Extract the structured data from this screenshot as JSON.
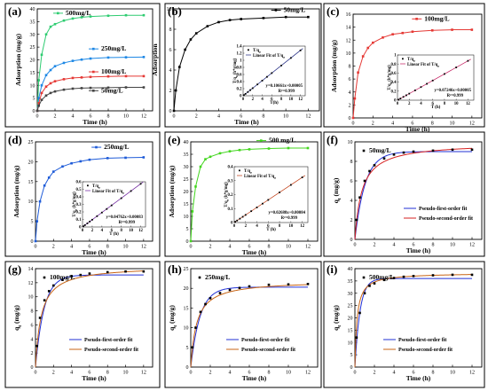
{
  "chart_data": [
    {
      "id": "a",
      "panel_label": "(a)",
      "type": "line",
      "xlabel": "Time (h)",
      "ylabel": "Adsorption (mg/g)",
      "xlim": [
        0,
        13
      ],
      "ylim": [
        0,
        40
      ],
      "xticks": [
        0,
        2,
        4,
        6,
        8,
        10,
        12
      ],
      "yticks": [
        0,
        5,
        10,
        15,
        20,
        25,
        30,
        35,
        40
      ],
      "series": [
        {
          "name": "500mg/L",
          "color": "#2ecc71",
          "label_at": [
            3.2,
            37.6
          ],
          "x": [
            0,
            0.17,
            0.5,
            1,
            1.5,
            2,
            3,
            4,
            5,
            6,
            8,
            10,
            12
          ],
          "y": [
            0,
            12,
            22,
            30,
            33,
            34,
            35.4,
            36.2,
            36.7,
            37,
            37.3,
            37.5,
            37.5
          ]
        },
        {
          "name": "250mg/L",
          "color": "#1e88e5",
          "label_at": [
            7.2,
            23.6
          ],
          "x": [
            0,
            0.17,
            0.5,
            1,
            1.5,
            2,
            3,
            4,
            5,
            6,
            8,
            10,
            12
          ],
          "y": [
            0,
            5,
            10,
            14,
            16,
            17.5,
            18.8,
            19.6,
            20.1,
            20.5,
            20.9,
            21,
            21.1
          ]
        },
        {
          "name": "100mg/L",
          "color": "#e53935",
          "label_at": [
            7.2,
            14.6
          ],
          "x": [
            0,
            0.17,
            0.5,
            1,
            1.5,
            2,
            3,
            4,
            5,
            6,
            8,
            10,
            12
          ],
          "y": [
            0,
            3,
            7,
            9.5,
            10.8,
            11.6,
            12.4,
            12.9,
            13.1,
            13.3,
            13.5,
            13.6,
            13.6
          ]
        },
        {
          "name": "50mg/L",
          "color": "#444444",
          "label_at": [
            7.2,
            7.2
          ],
          "x": [
            0,
            0.17,
            0.5,
            1,
            1.5,
            2,
            3,
            4,
            5,
            6,
            8,
            10,
            12
          ],
          "y": [
            0,
            2,
            4.3,
            6,
            7,
            7.6,
            8.3,
            8.7,
            8.9,
            9,
            9.1,
            9.2,
            9.2
          ]
        }
      ]
    },
    {
      "id": "b",
      "panel_label": "(b)",
      "type": "line",
      "xlabel": "Time (h)",
      "ylabel": "Adsorption",
      "xlim": [
        0,
        13
      ],
      "ylim": [
        0,
        10
      ],
      "xticks": [
        0,
        2,
        4,
        6,
        8,
        10,
        12
      ],
      "yticks": [
        0,
        2,
        4,
        6,
        8,
        10
      ],
      "series": [
        {
          "name": "50mg/L",
          "color": "#000000",
          "label_at": [
            9.8,
            9.7
          ],
          "x": [
            0,
            0.17,
            0.5,
            1,
            1.5,
            2,
            3,
            4,
            5,
            6,
            8,
            10,
            12
          ],
          "y": [
            0,
            2,
            4.3,
            6,
            7,
            7.6,
            8.3,
            8.7,
            8.9,
            9,
            9.1,
            9.2,
            9.2
          ]
        }
      ],
      "inset": {
        "xlabel": "T(h)",
        "ylabel": "T/q_e (h*g/mg)",
        "xlim": [
          0,
          13
        ],
        "ylim": [
          0,
          1.4
        ],
        "xticks": [
          0,
          2,
          4,
          6,
          8,
          10,
          12
        ],
        "yticks": [
          0.0,
          0.2,
          0.4,
          0.6,
          0.8,
          1.0,
          1.2,
          1.4
        ],
        "legend": [
          "T/q_e",
          "Linear Fit of T/q_e"
        ],
        "equation": "y=0.10661x+0.00005",
        "r2": "R²=0.999",
        "slope": 0.10661,
        "intercept": 5e-05,
        "color": "#1a237e",
        "points_x": [
          0.17,
          0.5,
          1,
          1.5,
          2,
          3,
          4,
          5,
          6,
          8,
          10,
          12
        ]
      }
    },
    {
      "id": "c",
      "panel_label": "(c)",
      "type": "line",
      "xlabel": "Time (h)",
      "ylabel": "Adsorption (mg/g)",
      "xlim": [
        0,
        13
      ],
      "ylim": [
        0,
        16
      ],
      "xticks": [
        0,
        2,
        4,
        6,
        8,
        10,
        12
      ],
      "yticks": [
        0,
        2,
        4,
        6,
        8,
        10,
        12,
        14,
        16
      ],
      "series": [
        {
          "name": "100mg/L",
          "color": "#e53935",
          "label_at": [
            7.2,
            15.0
          ],
          "x": [
            0,
            0.17,
            0.5,
            1,
            1.5,
            2,
            3,
            4,
            5,
            6,
            8,
            10,
            12
          ],
          "y": [
            0,
            3,
            7,
            9.5,
            10.8,
            11.6,
            12.4,
            12.9,
            13.1,
            13.3,
            13.5,
            13.6,
            13.6
          ]
        }
      ],
      "inset": {
        "xlabel": "T (h)",
        "ylabel": "T/q_e (h*g/mg)",
        "xlim": [
          0,
          13
        ],
        "ylim": [
          0,
          1.0
        ],
        "xticks": [
          0,
          2,
          4,
          6,
          8,
          10,
          12
        ],
        "yticks": [
          0.0,
          0.2,
          0.4,
          0.6,
          0.8,
          1.0
        ],
        "legend": [
          "T/q_e",
          "Linear Fit of T/q_e"
        ],
        "equation": "y=0.07246x+0.00005",
        "r2": "R²=0.999",
        "slope": 0.07246,
        "intercept": 5e-05,
        "color": "#c2185b",
        "points_x": [
          0.17,
          0.5,
          1,
          1.5,
          2,
          3,
          4,
          5,
          6,
          8,
          10,
          12
        ]
      }
    },
    {
      "id": "d",
      "panel_label": "(d)",
      "type": "line",
      "xlabel": "Time (h)",
      "ylabel": "Adsorption (mg/g)",
      "xlim": [
        0,
        13
      ],
      "ylim": [
        0,
        25
      ],
      "xticks": [
        0,
        2,
        4,
        6,
        8,
        10,
        12
      ],
      "yticks": [
        0,
        5,
        10,
        15,
        20,
        25
      ],
      "series": [
        {
          "name": "250mg/L",
          "color": "#1e5bd8",
          "label_at": [
            7.6,
            23.2
          ],
          "x": [
            0,
            0.17,
            0.5,
            1,
            1.5,
            2,
            3,
            4,
            5,
            6,
            8,
            10,
            12
          ],
          "y": [
            0,
            5,
            10,
            14,
            16,
            17.5,
            18.8,
            19.6,
            20.1,
            20.5,
            20.9,
            21,
            21.1
          ]
        }
      ],
      "inset": {
        "xlabel": "T (h)",
        "ylabel": "T/q_e (h*g/mg)",
        "xlim": [
          0,
          13
        ],
        "ylim": [
          0,
          0.6
        ],
        "xticks": [
          0,
          2,
          4,
          6,
          8,
          10,
          12
        ],
        "yticks": [
          0.0,
          0.1,
          0.2,
          0.3,
          0.4,
          0.5,
          0.6
        ],
        "legend": [
          "T/q_e",
          "Linear Fit of T/q_e"
        ],
        "equation": "y=0.04762x+0.00083",
        "r2": "R²=0.999",
        "slope": 0.04762,
        "intercept": 0.00083,
        "color": "#6a1b9a",
        "points_x": [
          0.17,
          0.5,
          1,
          1.5,
          2,
          3,
          4,
          5,
          6,
          8,
          10,
          12
        ]
      }
    },
    {
      "id": "e",
      "panel_label": "(e)",
      "type": "line",
      "xlabel": "Time (h)",
      "ylabel": "Adsorption (mg/g)",
      "xlim": [
        0,
        13
      ],
      "ylim": [
        0,
        40
      ],
      "xticks": [
        0,
        2,
        4,
        6,
        8,
        10,
        12
      ],
      "yticks": [
        0,
        5,
        10,
        15,
        20,
        25,
        30,
        35,
        40
      ],
      "series": [
        {
          "name": "500 mg/L",
          "color": "#43d61f",
          "label_at": [
            8.0,
            39.8
          ],
          "x": [
            0,
            0.17,
            0.5,
            1,
            1.5,
            2,
            3,
            4,
            5,
            6,
            8,
            10,
            12
          ],
          "y": [
            0,
            12,
            22,
            30,
            33,
            34,
            35.4,
            36.2,
            36.7,
            37,
            37.3,
            37.5,
            37.5
          ]
        }
      ],
      "inset": {
        "xlabel": "T (h)",
        "ylabel": "T/q_e (h*g/mg)",
        "xlim": [
          0,
          13
        ],
        "ylim": [
          0,
          0.4
        ],
        "xticks": [
          0,
          2,
          4,
          6,
          8,
          10,
          12
        ],
        "yticks": [
          0.0,
          0.1,
          0.2,
          0.3,
          0.4
        ],
        "legend": [
          "T/q_e",
          "Linear Fit of T/q_e"
        ],
        "equation": "y=0.02688x+0.00084",
        "r2": "R²=0.999",
        "slope": 0.02688,
        "intercept": 0.00084,
        "color": "#bf360c",
        "points_x": [
          0.17,
          0.5,
          1,
          1.5,
          2,
          3,
          4,
          5,
          6,
          8,
          10,
          12
        ]
      }
    },
    {
      "id": "f",
      "panel_label": "(f)",
      "type": "line",
      "xlabel": "Time (h)",
      "ylabel": "q_t (mg/g)",
      "xlim": [
        0,
        13
      ],
      "ylim": [
        0,
        10
      ],
      "xticks": [
        0,
        2,
        4,
        6,
        8,
        10,
        12
      ],
      "yticks": [
        0,
        2,
        4,
        6,
        8,
        10
      ],
      "point_legend": "50mg/L",
      "points": {
        "x": [
          0.17,
          0.5,
          1,
          1.5,
          2,
          3,
          4,
          5,
          6,
          8,
          10,
          12
        ],
        "y": [
          2,
          4.3,
          6,
          7,
          7.6,
          8.3,
          8.7,
          8.9,
          9,
          9.1,
          9.2,
          9.2
        ]
      },
      "series": [
        {
          "name": "Pseudo-first-order fit",
          "color": "#2130d6",
          "model": "pfo",
          "qe": 9.0,
          "k": 0.95
        },
        {
          "name": "Pseudo-second-order fit",
          "color": "#d62121",
          "model": "pso",
          "qe": 9.9,
          "k": 0.14
        }
      ]
    },
    {
      "id": "g",
      "panel_label": "(g)",
      "type": "line",
      "xlabel": "Time (h)",
      "ylabel": "q_t (mg/g)",
      "xlim": [
        0,
        13
      ],
      "ylim": [
        0,
        14
      ],
      "xticks": [
        0,
        2,
        4,
        6,
        8,
        10,
        12
      ],
      "yticks": [
        0,
        2,
        4,
        6,
        8,
        10,
        12,
        14
      ],
      "point_legend": "100mg/L",
      "points": {
        "x": [
          0.17,
          0.5,
          1,
          1.5,
          2,
          3,
          4,
          5,
          6,
          8,
          10,
          12
        ],
        "y": [
          3,
          7,
          9.5,
          10.8,
          11.6,
          12.4,
          12.9,
          13.1,
          13.3,
          13.5,
          13.6,
          13.6
        ]
      },
      "series": [
        {
          "name": "Pseudo-first-order fit",
          "color": "#2130d6",
          "model": "pfo",
          "qe": 13.1,
          "k": 1.05
        },
        {
          "name": "Pseudo-second-order fit",
          "color": "#c86414",
          "model": "pso",
          "qe": 14.4,
          "k": 0.11
        }
      ]
    },
    {
      "id": "h",
      "panel_label": "(h)",
      "type": "line",
      "xlabel": "Time (h)",
      "ylabel": "q_t (mg/g)",
      "xlim": [
        0,
        13
      ],
      "ylim": [
        0,
        25
      ],
      "xticks": [
        0,
        2,
        4,
        6,
        8,
        10,
        12
      ],
      "yticks": [
        0,
        5,
        10,
        15,
        20,
        25
      ],
      "point_legend": "250mg/L",
      "points": {
        "x": [
          0.17,
          0.5,
          1,
          1.5,
          2,
          3,
          4,
          5,
          6,
          8,
          10,
          12
        ],
        "y": [
          5,
          10,
          14,
          16,
          17.5,
          18.8,
          19.6,
          20.1,
          20.5,
          20.9,
          21,
          21.1
        ]
      },
      "series": [
        {
          "name": "Pseudo-first-order fit",
          "color": "#2130d6",
          "model": "pfo",
          "qe": 20.3,
          "k": 1.05
        },
        {
          "name": "Pseudo-second-order fit",
          "color": "#c86414",
          "model": "pso",
          "qe": 22.0,
          "k": 0.075
        }
      ]
    },
    {
      "id": "i",
      "panel_label": "(i)",
      "type": "line",
      "xlabel": "Time (h)",
      "ylabel": "q_t (mg/g)",
      "xlim": [
        0,
        13
      ],
      "ylim": [
        0,
        40
      ],
      "xticks": [
        0,
        2,
        4,
        6,
        8,
        10,
        12
      ],
      "yticks": [
        0,
        5,
        10,
        15,
        20,
        25,
        30,
        35,
        40
      ],
      "point_legend": "500mg/L",
      "points": {
        "x": [
          0.17,
          0.5,
          1,
          1.5,
          2,
          3,
          4,
          5,
          6,
          8,
          10,
          12
        ],
        "y": [
          12,
          22,
          30,
          33,
          34,
          35.4,
          36.2,
          36.7,
          37,
          37.3,
          37.5,
          37.5
        ]
      },
      "series": [
        {
          "name": "Pseudo-first-order fit",
          "color": "#2130d6",
          "model": "pfo",
          "qe": 36.0,
          "k": 1.9
        },
        {
          "name": "Pseudo-second-order fit",
          "color": "#c86414",
          "model": "pso",
          "qe": 38.3,
          "k": 0.12
        }
      ]
    }
  ]
}
